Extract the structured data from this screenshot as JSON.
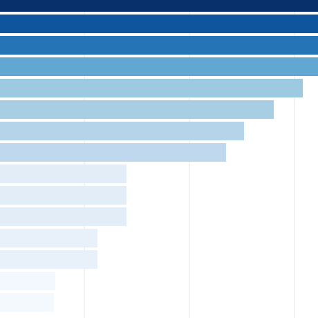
{
  "chart_data": {
    "type": "bar",
    "orientation": "horizontal",
    "sort": "descending",
    "grid": true,
    "legend": "none",
    "title": "",
    "xlabel": "",
    "ylabel": "",
    "xlim_visible": [
      0,
      460
    ],
    "values": [
      470,
      468,
      466,
      462,
      438,
      396,
      353,
      327,
      183,
      183,
      183,
      141,
      141,
      80,
      78
    ],
    "colors": [
      "#08306b",
      "#0f559d",
      "#2474b6",
      "#62a7d2",
      "#9dcae1",
      "#a8cee4",
      "#b5d4e9",
      "#bfd8ed",
      "#e2edf8",
      "#e2edf8",
      "#e2edf8",
      "#e8f0f9",
      "#e8f0f9",
      "#f3f8fe",
      "#f4f9fe"
    ],
    "gridlines_x": [
      122,
      274,
      426
    ],
    "grid_color": "#e6e6e6"
  }
}
